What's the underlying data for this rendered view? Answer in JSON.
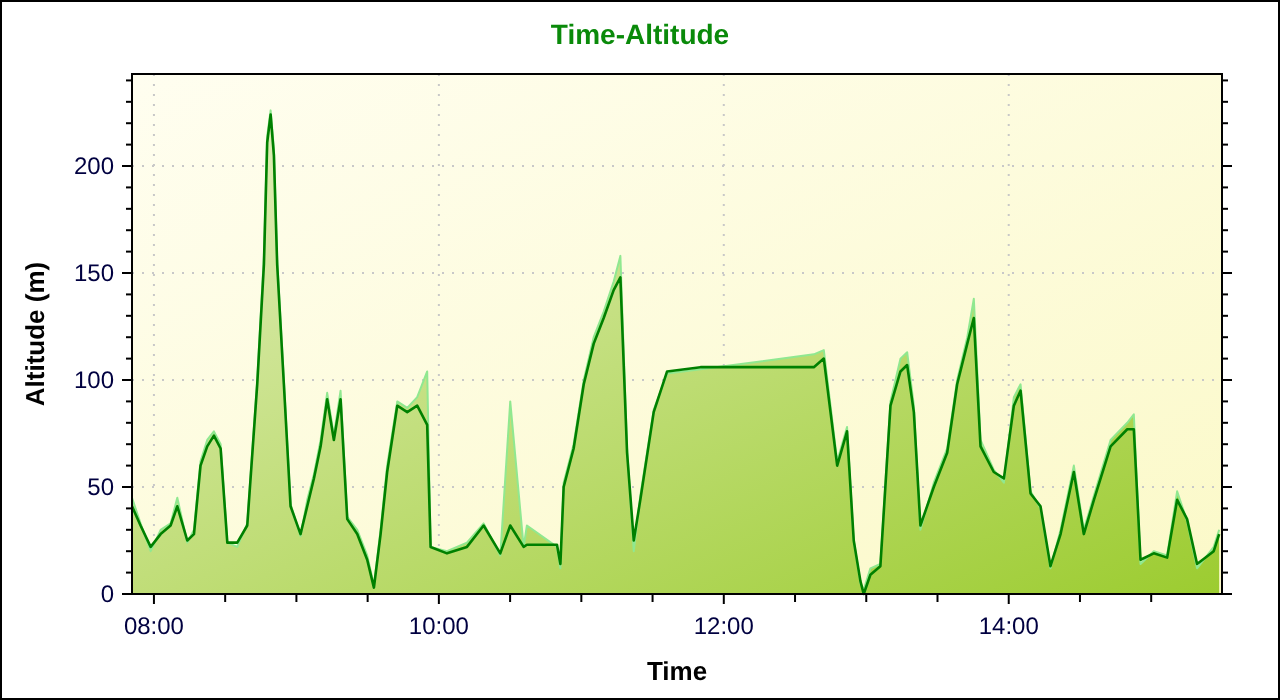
{
  "chart_data": {
    "type": "line",
    "title": "Time-Altitude",
    "xlabel": "Time",
    "ylabel": "Altitude (m)",
    "xlim": [
      7.846,
      15.497
    ],
    "ylim": [
      0,
      243
    ],
    "xticks": [
      {
        "value": 8,
        "label": "08:00"
      },
      {
        "value": 8.5,
        "label": null
      },
      {
        "value": 9,
        "label": null
      },
      {
        "value": 9.5,
        "label": null
      },
      {
        "value": 10,
        "label": "10:00"
      },
      {
        "value": 10.5,
        "label": null
      },
      {
        "value": 11,
        "label": null
      },
      {
        "value": 11.5,
        "label": null
      },
      {
        "value": 12,
        "label": "12:00"
      },
      {
        "value": 12.5,
        "label": null
      },
      {
        "value": 13,
        "label": null
      },
      {
        "value": 13.5,
        "label": null
      },
      {
        "value": 14,
        "label": "14:00"
      },
      {
        "value": 14.5,
        "label": null
      },
      {
        "value": 15,
        "label": null
      }
    ],
    "yticks": [
      0,
      {
        "value": 10,
        "label": null
      },
      {
        "value": 20,
        "label": null
      },
      {
        "value": 30,
        "label": null
      },
      {
        "value": 40,
        "label": null
      },
      50,
      {
        "value": 60,
        "label": null
      },
      {
        "value": 70,
        "label": null
      },
      {
        "value": 80,
        "label": null
      },
      {
        "value": 90,
        "label": null
      },
      100,
      {
        "value": 110,
        "label": null
      },
      {
        "value": 120,
        "label": null
      },
      {
        "value": 130,
        "label": null
      },
      {
        "value": 140,
        "label": null
      },
      150,
      {
        "value": 160,
        "label": null
      },
      {
        "value": 170,
        "label": null
      },
      {
        "value": 180,
        "label": null
      },
      {
        "value": 190,
        "label": null
      },
      200,
      {
        "value": 210,
        "label": null
      },
      {
        "value": 220,
        "label": null
      },
      {
        "value": 230,
        "label": null
      },
      {
        "value": 240,
        "label": null
      }
    ],
    "grid": true,
    "marker": "none",
    "line_style": "solid",
    "x": [
      7.846,
      7.906,
      7.977,
      8.047,
      8.117,
      8.164,
      8.234,
      8.281,
      8.327,
      8.374,
      8.421,
      8.468,
      8.515,
      8.585,
      8.655,
      8.725,
      8.772,
      8.795,
      8.819,
      8.842,
      8.865,
      8.912,
      8.959,
      9.029,
      9.076,
      9.123,
      9.17,
      9.216,
      9.263,
      9.31,
      9.357,
      9.427,
      9.497,
      9.544,
      9.591,
      9.637,
      9.708,
      9.778,
      9.848,
      9.918,
      9.942,
      10.057,
      10.197,
      10.314,
      10.431,
      10.501,
      10.595,
      10.618,
      10.829,
      10.853,
      10.876,
      10.946,
      11.017,
      11.087,
      11.157,
      11.227,
      11.274,
      11.321,
      11.368,
      11.414,
      11.508,
      11.602,
      11.836,
      12.632,
      12.702,
      12.749,
      12.796,
      12.865,
      12.912,
      12.959,
      12.982,
      13.029,
      13.099,
      13.17,
      13.24,
      13.287,
      13.334,
      13.38,
      13.474,
      13.568,
      13.638,
      13.709,
      13.755,
      13.802,
      13.895,
      13.966,
      14.036,
      14.083,
      14.153,
      14.223,
      14.293,
      14.364,
      14.457,
      14.527,
      14.598,
      14.715,
      14.832,
      14.878,
      14.925,
      15.018,
      15.112,
      15.182,
      15.252,
      15.322,
      15.439,
      15.477
    ],
    "series": [
      {
        "type": "area",
        "color": "#90e890",
        "values": [
          45,
          33,
          20,
          30,
          33,
          45,
          24,
          30,
          62,
          72,
          76,
          70,
          24,
          22,
          33,
          100,
          158,
          214,
          226,
          208,
          156,
          100,
          42,
          27,
          44,
          56,
          72,
          94,
          74,
          95,
          36,
          30,
          18,
          4,
          30,
          60,
          90,
          87,
          92,
          104,
          22,
          20,
          24,
          33,
          18,
          90,
          22,
          32,
          22,
          12,
          52,
          70,
          100,
          120,
          132,
          146,
          158,
          68,
          20,
          46,
          86,
          103,
          105,
          112,
          114,
          88,
          62,
          78,
          25,
          5,
          2,
          12,
          14,
          90,
          110,
          113,
          88,
          30,
          52,
          68,
          100,
          120,
          138,
          72,
          58,
          52,
          92,
          98,
          48,
          40,
          12,
          30,
          60,
          30,
          46,
          72,
          80,
          84,
          14,
          20,
          18,
          48,
          34,
          12,
          22,
          30
        ]
      },
      {
        "color": "#008000",
        "values": [
          41,
          32,
          22,
          28,
          32,
          41,
          25,
          28,
          60,
          69,
          74,
          68,
          24,
          24,
          32,
          98,
          154,
          211,
          224,
          205,
          154,
          98,
          41,
          28,
          41,
          54,
          69,
          91,
          72,
          91,
          35,
          28,
          16,
          3,
          28,
          57,
          88,
          85,
          88,
          79,
          22,
          19,
          22,
          32,
          19,
          32,
          22,
          23,
          23,
          14,
          50,
          68,
          98,
          117,
          129,
          142,
          148,
          66,
          25,
          44,
          85,
          104,
          106,
          106,
          110,
          85,
          60,
          76,
          25,
          6,
          0,
          9,
          13,
          88,
          104,
          107,
          85,
          32,
          50,
          66,
          98,
          117,
          129,
          69,
          57,
          54,
          88,
          95,
          47,
          41,
          13,
          28,
          57,
          28,
          44,
          69,
          77,
          77,
          16,
          19,
          17,
          44,
          35,
          14,
          20,
          28
        ]
      }
    ]
  }
}
